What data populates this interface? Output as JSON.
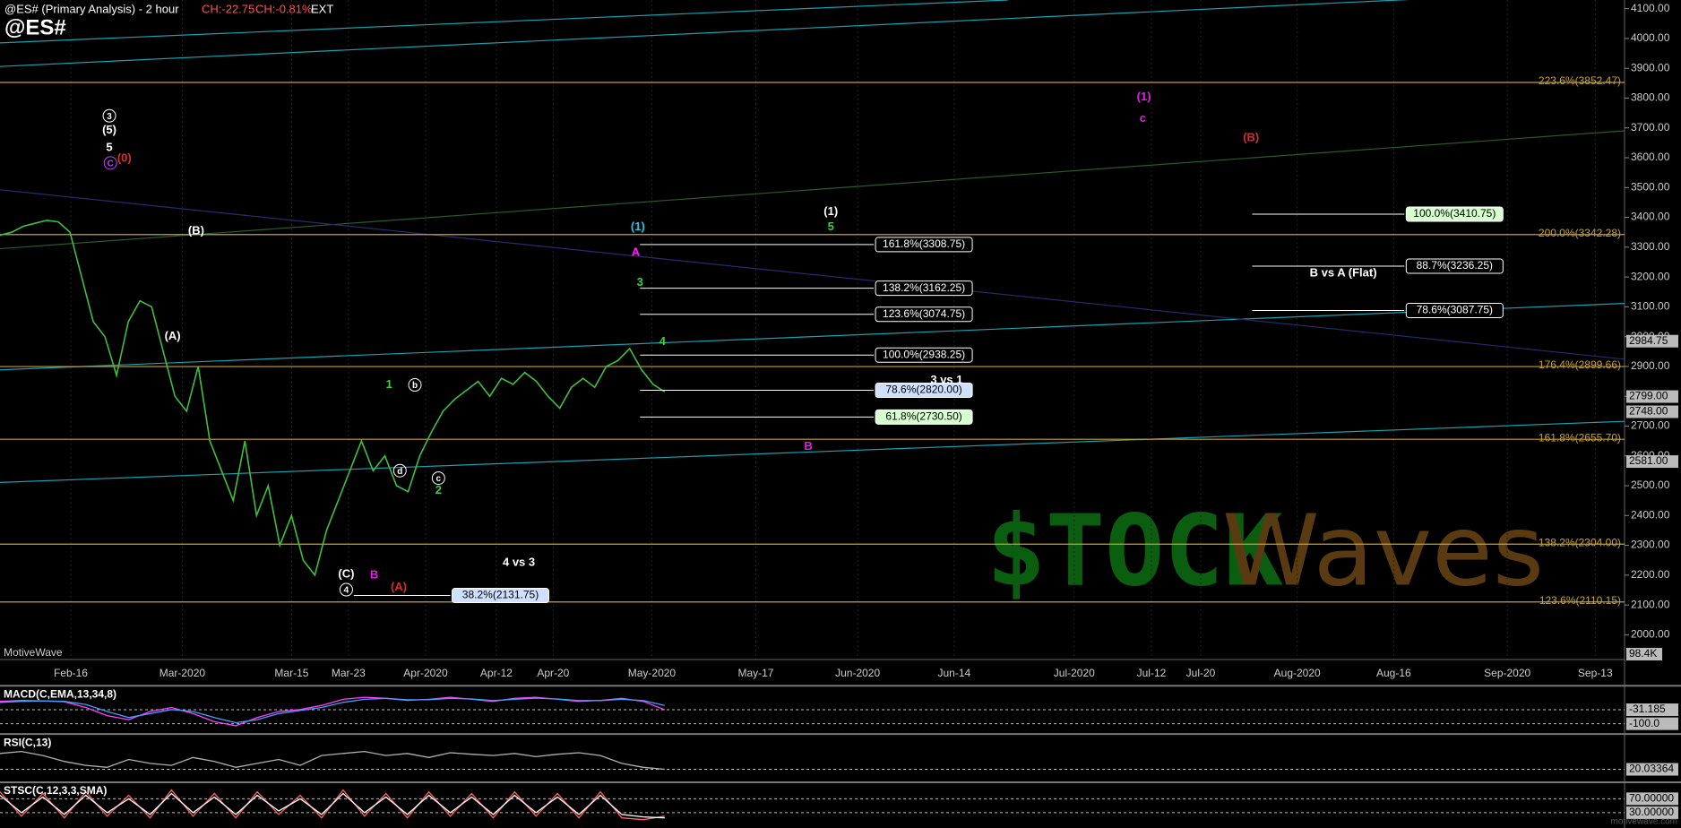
{
  "header": {
    "title": "@ES# (Primary Analysis) - 2 hour",
    "change": "CH:-22.75",
    "change_pct": "CH:-0.81%",
    "session": "EXT",
    "symbol": "@ES#"
  },
  "footer": "motivewave.com",
  "chart_data": [
    {
      "type": "line",
      "color": "#3fbf3f",
      "ylim": [
        1917,
        4129
      ],
      "values": [
        3340,
        3350,
        3370,
        3380,
        3390,
        3385,
        3350,
        3200,
        3050,
        3000,
        2870,
        3050,
        3120,
        3100,
        2950,
        2800,
        2750,
        2900,
        2650,
        2550,
        2450,
        2650,
        2400,
        2500,
        2300,
        2400,
        2250,
        2200,
        2350,
        2450,
        2550,
        2650,
        2550,
        2600,
        2500,
        2480,
        2600,
        2680,
        2750,
        2790,
        2820,
        2850,
        2800,
        2860,
        2840,
        2880,
        2850,
        2800,
        2760,
        2830,
        2860,
        2830,
        2900,
        2920,
        2960,
        2890,
        2840,
        2815
      ],
      "yticks": [
        {
          "value": 2000,
          "label": "2000.00"
        },
        {
          "value": 2100,
          "label": "2100.00"
        },
        {
          "value": 2200,
          "label": "2200.00"
        },
        {
          "value": 2300,
          "label": "2300.00"
        },
        {
          "value": 2400,
          "label": "2400.00"
        },
        {
          "value": 2500,
          "label": "2500.00"
        },
        {
          "value": 2600,
          "label": "2600.00"
        },
        {
          "value": 2700,
          "label": "2700.00"
        },
        {
          "value": 2800,
          "label": "2800.00"
        },
        {
          "value": 2900,
          "label": "2900.00"
        },
        {
          "value": 3000,
          "label": "3000.00"
        },
        {
          "value": 3100,
          "label": "3100.00"
        },
        {
          "value": 3200,
          "label": "3200.00"
        },
        {
          "value": 3300,
          "label": "3300.00"
        },
        {
          "value": 3400,
          "label": "3400.00"
        },
        {
          "value": 3500,
          "label": "3500.00"
        },
        {
          "value": 3600,
          "label": "3600.00"
        },
        {
          "value": 3700,
          "label": "3700.00"
        },
        {
          "value": 3800,
          "label": "3800.00"
        },
        {
          "value": 3900,
          "label": "3900.00"
        },
        {
          "value": 4000,
          "label": "4000.00"
        },
        {
          "value": 4100,
          "label": "4100.00"
        }
      ],
      "xtick_labels": [
        "Feb-16",
        "Mar-2020",
        "Mar-15",
        "Mar-23",
        "Apr-2020",
        "Apr-12",
        "Apr-20",
        "May-2020",
        "May-17",
        "Jun-2020",
        "Jun-14",
        "Jul-2020",
        "Jul-12",
        "Jul-20",
        "Aug-2020",
        "Aug-16",
        "Sep-2020",
        "Sep-13"
      ],
      "price_labels": [
        {
          "value": 2984.75,
          "label": "2984.75"
        },
        {
          "value": 2799.0,
          "label": "2799.00"
        },
        {
          "value": 2748.0,
          "label": "2748.00"
        },
        {
          "value": 2581.0,
          "label": "2581.00"
        }
      ],
      "volume_label": "98.4K",
      "source": "MotiveWave",
      "fib_levels": [
        {
          "value": 3852.47,
          "label": "223.6%(3852.47)"
        },
        {
          "value": 3342.28,
          "label": "200.0%(3342.28)"
        },
        {
          "value": 2899.66,
          "label": "176.4%(2899.66)"
        },
        {
          "value": 2655.7,
          "label": "161.8%(2655.70)"
        },
        {
          "value": 2304.0,
          "label": "138.2%(2304.00)"
        },
        {
          "value": 2110.15,
          "label": "123.6%(2110.15)"
        }
      ],
      "targets": [
        {
          "value": 3308.75,
          "label": "161.8%(3308.75)",
          "bg": "#000000"
        },
        {
          "value": 3162.25,
          "label": "138.2%(3162.25)",
          "bg": "#000000"
        },
        {
          "value": 3074.75,
          "label": "123.6%(3074.75)",
          "bg": "#000000"
        },
        {
          "value": 2938.25,
          "label": "100.0%(2938.25)",
          "bg": "#000000"
        },
        {
          "value": 2820.0,
          "label": "78.6%(2820.00)",
          "bg": "#cfe0ff"
        },
        {
          "value": 2730.5,
          "label": "61.8%(2730.50)",
          "bg": "#d8ffd0"
        },
        {
          "value": 3410.75,
          "label": "100.0%(3410.75)",
          "bg": "#d8ffd0"
        },
        {
          "value": 3236.25,
          "label": "88.7%(3236.25)",
          "bg": "#000000"
        },
        {
          "value": 3087.75,
          "label": "78.6%(3087.75)",
          "bg": "#000000"
        },
        {
          "value": 2131.75,
          "label": "38.2%(2131.75)",
          "bg": "#cfe0ff"
        }
      ],
      "annotations": [
        {
          "text": "3",
          "color": "#ffffff",
          "circled": true
        },
        {
          "text": "(5)",
          "color": "#ffffff"
        },
        {
          "text": "5",
          "color": "#ffffff"
        },
        {
          "text": "(0)",
          "color": "#d03030"
        },
        {
          "text": "C",
          "color": "#c040ff",
          "circled": true
        },
        {
          "text": "(B)",
          "color": "#ffffff"
        },
        {
          "text": "(A)",
          "color": "#ffffff"
        },
        {
          "text": "1",
          "color": "#40d040"
        },
        {
          "text": "b",
          "color": "#ffffff",
          "circled": true
        },
        {
          "text": "d",
          "color": "#ffffff",
          "circled": true
        },
        {
          "text": "c",
          "color": "#ffffff",
          "circled": true
        },
        {
          "text": "2",
          "color": "#40d040"
        },
        {
          "text": "(C)",
          "color": "#ffffff"
        },
        {
          "text": "4",
          "color": "#ffffff",
          "circled": true
        },
        {
          "text": "B",
          "color": "#e020e0"
        },
        {
          "text": "(A)",
          "color": "#d03030"
        },
        {
          "text": "4 vs 3",
          "color": "#ffffff"
        },
        {
          "text": "(1)",
          "color": "#20c8e8"
        },
        {
          "text": "A",
          "color": "#ff20ff"
        },
        {
          "text": "3",
          "color": "#40d040"
        },
        {
          "text": "4",
          "color": "#40d040"
        },
        {
          "text": "(1)",
          "color": "#ffffff"
        },
        {
          "text": "5",
          "color": "#40d040"
        },
        {
          "text": "3 vs 1",
          "color": "#ffffff"
        },
        {
          "text": "B",
          "color": "#e020e0"
        },
        {
          "text": "(1)",
          "color": "#e020e0"
        },
        {
          "text": "c",
          "color": "#e020e0"
        },
        {
          "text": "(B)",
          "color": "#d03030"
        },
        {
          "text": "B vs A (Flat)",
          "color": "#ffffff"
        }
      ],
      "watermark": {
        "left": "$TOCK",
        "right": "Waves"
      }
    },
    {
      "type": "line",
      "title": "MACD(C,EMA,13,34,8)",
      "ylim": [
        -142,
        69
      ],
      "series": [
        {
          "color": "#ff40ff",
          "values": [
            10,
            15,
            12,
            8,
            -20,
            -60,
            -80,
            -40,
            -20,
            -50,
            -90,
            -110,
            -70,
            -40,
            -30,
            -10,
            20,
            30,
            25,
            15,
            20,
            30,
            20,
            10,
            25,
            30,
            20,
            10,
            15,
            25,
            10,
            -31.185
          ]
        },
        {
          "color": "#40a0ff",
          "values": [
            5,
            10,
            12,
            10,
            -5,
            -40,
            -70,
            -50,
            -30,
            -40,
            -70,
            -95,
            -80,
            -50,
            -35,
            -20,
            5,
            20,
            25,
            18,
            18,
            25,
            22,
            14,
            20,
            26,
            22,
            14,
            14,
            20,
            14,
            -10
          ]
        }
      ],
      "yticks": [
        {
          "value": -31.185,
          "label": "-31.185"
        },
        {
          "value": -100,
          "label": "-100.0"
        }
      ]
    },
    {
      "type": "line",
      "title": "RSI(C,13)",
      "ylim": [
        0,
        100
      ],
      "series": [
        {
          "color": "#b0b0b0",
          "values": [
            60,
            65,
            55,
            40,
            30,
            25,
            45,
            35,
            30,
            50,
            40,
            25,
            35,
            45,
            30,
            55,
            60,
            65,
            55,
            60,
            50,
            62,
            58,
            55,
            60,
            52,
            58,
            62,
            55,
            35,
            25,
            20.03364
          ]
        }
      ],
      "yticks": [
        {
          "value": 20.03364,
          "label": "20.03364"
        }
      ]
    },
    {
      "type": "line",
      "title": "STSC(C,12,3,3,SMA)",
      "ylim": [
        8.5,
        107
      ],
      "series": [
        {
          "color": "#ff6060",
          "values": [
            90,
            20,
            85,
            15,
            90,
            20,
            80,
            15,
            95,
            20,
            85,
            15,
            90,
            25,
            80,
            15,
            95,
            20,
            85,
            15,
            90,
            20,
            85,
            15,
            90,
            20,
            85,
            15,
            90,
            15,
            10,
            20
          ]
        },
        {
          "color": "#ffffff",
          "values": [
            80,
            30,
            75,
            25,
            80,
            30,
            70,
            25,
            85,
            30,
            75,
            25,
            80,
            35,
            70,
            25,
            85,
            30,
            75,
            25,
            80,
            30,
            75,
            25,
            80,
            30,
            75,
            25,
            80,
            25,
            18,
            15
          ]
        }
      ],
      "yticks": [
        {
          "value": 70,
          "label": "70.00000"
        },
        {
          "value": 30,
          "label": "30.00000"
        }
      ]
    }
  ]
}
